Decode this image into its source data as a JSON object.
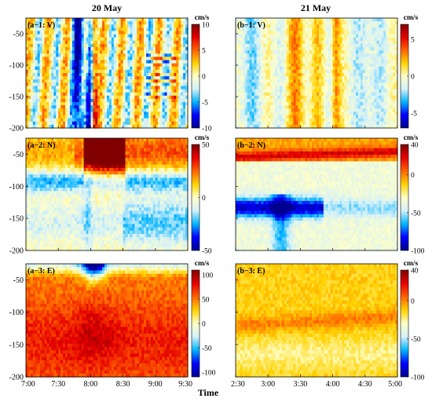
{
  "chart_data": [
    {
      "type": "heatmap",
      "panel_label": "(a−1: V)",
      "column_title": "20 May",
      "component": "V",
      "ylim": [
        -200,
        -25
      ],
      "yticks": [
        -50,
        -100,
        -150,
        -200
      ],
      "colorbar": {
        "unit": "cm/s",
        "range": [
          -10,
          10
        ],
        "ticks": [
          10,
          5,
          0,
          -5,
          -10
        ]
      },
      "x_ticks": [
        "7:00",
        "7:30",
        "8:00",
        "8:30",
        "9:00",
        "9:30"
      ]
    },
    {
      "type": "heatmap",
      "panel_label": "(a−2: N)",
      "component": "N",
      "ylim": [
        -200,
        -25
      ],
      "yticks": [
        -50,
        -100,
        -150,
        -200
      ],
      "colorbar": {
        "unit": "cm/s",
        "range": [
          -50,
          50
        ],
        "ticks": [
          50,
          0,
          -50
        ]
      },
      "x_ticks": [
        "7:00",
        "7:30",
        "8:00",
        "8:30",
        "9:00",
        "9:30"
      ]
    },
    {
      "type": "heatmap",
      "panel_label": "(a−3: E)",
      "component": "E",
      "ylim": [
        -200,
        -25
      ],
      "yticks": [
        -50,
        -100,
        -150,
        -200
      ],
      "colorbar": {
        "unit": "cm/s",
        "range": [
          -110,
          110
        ],
        "ticks": [
          100,
          50,
          0,
          -50,
          -100
        ]
      },
      "x_ticks": [
        "7:00",
        "7:30",
        "8:00",
        "8:30",
        "9:00",
        "9:30"
      ]
    },
    {
      "type": "heatmap",
      "panel_label": "(b−1: V)",
      "column_title": "21 May",
      "component": "V",
      "ylim": [
        -200,
        -25
      ],
      "colorbar": {
        "unit": "cm/s",
        "range": [
          -7,
          7
        ],
        "ticks": [
          5,
          0,
          -5
        ]
      },
      "x_ticks": [
        "2:30",
        "3:00",
        "3:30",
        "4:00",
        "4:30",
        "5:00"
      ]
    },
    {
      "type": "heatmap",
      "panel_label": "(b−2: N)",
      "component": "N",
      "ylim": [
        -200,
        -25
      ],
      "colorbar": {
        "unit": "cm/s",
        "range": [
          -100,
          40
        ],
        "ticks": [
          40,
          0,
          -50,
          -100
        ]
      },
      "x_ticks": [
        "2:30",
        "3:00",
        "3:30",
        "4:00",
        "4:30",
        "5:00"
      ]
    },
    {
      "type": "heatmap",
      "panel_label": "(b−3: E)",
      "component": "E",
      "ylim": [
        -200,
        -25
      ],
      "colorbar": {
        "unit": "cm/s",
        "range": [
          -100,
          40
        ],
        "ticks": [
          40,
          0,
          -50,
          -100
        ]
      },
      "x_ticks": [
        "2:30",
        "3:00",
        "3:30",
        "4:00",
        "4:30",
        "5:00"
      ]
    }
  ],
  "xlabel": "Time",
  "colormap": [
    "#00008f",
    "#0000ff",
    "#00b4ff",
    "#d2f0fa",
    "#ffffc8",
    "#ffd200",
    "#ff6400",
    "#e60000",
    "#800000"
  ]
}
